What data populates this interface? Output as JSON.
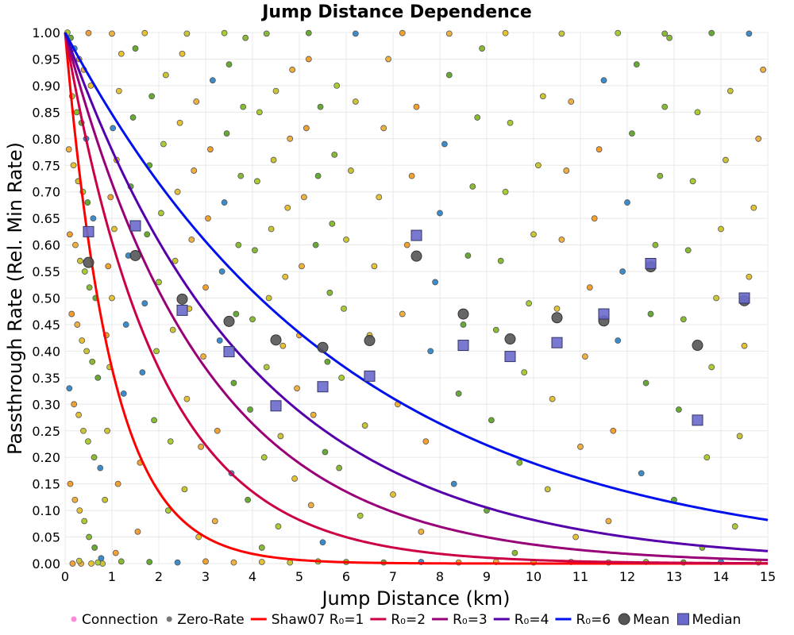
{
  "chart_data": {
    "type": "scatter",
    "title": "Jump Distance Dependence",
    "xlabel": "Jump Distance (km)",
    "ylabel": "Passthrough Rate (Rel. Min Rate)",
    "xlim": [
      0,
      15
    ],
    "ylim": [
      0,
      1
    ],
    "x_ticks": [
      "0",
      "1",
      "2",
      "3",
      "4",
      "5",
      "6",
      "7",
      "8",
      "9",
      "10",
      "11",
      "12",
      "13",
      "14",
      "15"
    ],
    "y_ticks": [
      "0.00",
      "0.05",
      "0.10",
      "0.15",
      "0.20",
      "0.25",
      "0.30",
      "0.35",
      "0.40",
      "0.45",
      "0.50",
      "0.55",
      "0.60",
      "0.65",
      "0.70",
      "0.75",
      "0.80",
      "0.85",
      "0.90",
      "0.95",
      "1.00"
    ],
    "grid": true,
    "legend_position": "bottom",
    "legend": [
      "Connection",
      "Zero-Rate",
      "Shaw07 R₀=1",
      "R₀=2",
      "R₀=3",
      "R₀=4",
      "R₀=6",
      "Mean",
      "Median"
    ],
    "connection_colors": [
      "#66aa33",
      "#88bb33",
      "#aacc33",
      "#ccc533",
      "#e6c233",
      "#f0b040",
      "#f2a030",
      "#3a8ccc"
    ],
    "curves": [
      {
        "name": "Shaw07 R₀=1",
        "r0": 1,
        "color": "#ff0000"
      },
      {
        "name": "R₀=2",
        "r0": 2,
        "color": "#cc0044"
      },
      {
        "name": "R₀=3",
        "r0": 3,
        "color": "#990077"
      },
      {
        "name": "R₀=4",
        "r0": 4,
        "color": "#5500aa"
      },
      {
        "name": "R₀=6",
        "r0": 6,
        "color": "#0011ee"
      }
    ],
    "mean": {
      "color": "#555555",
      "x": [
        0.5,
        1.5,
        2.5,
        3.5,
        4.5,
        5.5,
        6.5,
        7.5,
        8.5,
        9.5,
        10.5,
        11.5,
        12.5,
        13.5,
        14.5
      ],
      "y": [
        0.567,
        0.58,
        0.498,
        0.456,
        0.421,
        0.407,
        0.42,
        0.579,
        0.47,
        0.423,
        0.463,
        0.457,
        0.559,
        0.411,
        0.495
      ]
    },
    "median": {
      "color": "#6a6acc",
      "x": [
        0.5,
        1.5,
        2.5,
        3.5,
        4.5,
        5.5,
        6.5,
        7.5,
        8.5,
        9.5,
        10.5,
        11.5,
        12.5,
        13.5,
        14.5
      ],
      "y": [
        0.625,
        0.636,
        0.477,
        0.399,
        0.297,
        0.333,
        0.353,
        0.618,
        0.411,
        0.39,
        0.416,
        0.47,
        0.565,
        0.27,
        0.5
      ]
    },
    "connections": [
      [
        0.05,
        1.0
      ],
      [
        0.12,
        0.99
      ],
      [
        0.2,
        0.97
      ],
      [
        0.3,
        0.95
      ],
      [
        0.4,
        0.93
      ],
      [
        0.55,
        0.9
      ],
      [
        0.15,
        0.88
      ],
      [
        0.25,
        0.85
      ],
      [
        0.35,
        0.83
      ],
      [
        0.45,
        0.8
      ],
      [
        0.08,
        0.78
      ],
      [
        0.18,
        0.75
      ],
      [
        0.28,
        0.72
      ],
      [
        0.38,
        0.7
      ],
      [
        0.48,
        0.68
      ],
      [
        0.6,
        0.65
      ],
      [
        0.1,
        0.62
      ],
      [
        0.22,
        0.6
      ],
      [
        0.32,
        0.57
      ],
      [
        0.42,
        0.55
      ],
      [
        0.52,
        0.52
      ],
      [
        0.65,
        0.5
      ],
      [
        0.14,
        0.47
      ],
      [
        0.26,
        0.45
      ],
      [
        0.36,
        0.42
      ],
      [
        0.46,
        0.4
      ],
      [
        0.58,
        0.38
      ],
      [
        0.7,
        0.35
      ],
      [
        0.09,
        0.33
      ],
      [
        0.19,
        0.3
      ],
      [
        0.29,
        0.28
      ],
      [
        0.39,
        0.25
      ],
      [
        0.49,
        0.23
      ],
      [
        0.62,
        0.2
      ],
      [
        0.75,
        0.18
      ],
      [
        0.11,
        0.15
      ],
      [
        0.21,
        0.12
      ],
      [
        0.31,
        0.1
      ],
      [
        0.41,
        0.08
      ],
      [
        0.51,
        0.05
      ],
      [
        0.63,
        0.03
      ],
      [
        0.77,
        0.01
      ],
      [
        0.16,
        0.0
      ],
      [
        0.34,
        0.0
      ],
      [
        0.56,
        0.0
      ],
      [
        0.8,
        0.0
      ],
      [
        0.85,
        0.12
      ],
      [
        0.9,
        0.25
      ],
      [
        0.95,
        0.37
      ],
      [
        1.0,
        0.5
      ],
      [
        1.05,
        0.63
      ],
      [
        1.1,
        0.76
      ],
      [
        1.15,
        0.89
      ],
      [
        1.2,
        0.96
      ],
      [
        0.88,
        0.43
      ],
      [
        0.92,
        0.56
      ],
      [
        0.97,
        0.69
      ],
      [
        1.02,
        0.82
      ],
      [
        1.08,
        0.02
      ],
      [
        1.13,
        0.15
      ],
      [
        1.25,
        0.32
      ],
      [
        1.3,
        0.45
      ],
      [
        1.35,
        0.58
      ],
      [
        1.4,
        0.71
      ],
      [
        1.45,
        0.84
      ],
      [
        1.5,
        0.97
      ],
      [
        1.55,
        0.06
      ],
      [
        1.6,
        0.19
      ],
      [
        1.65,
        0.36
      ],
      [
        1.7,
        0.49
      ],
      [
        1.75,
        0.62
      ],
      [
        1.8,
        0.75
      ],
      [
        1.85,
        0.88
      ],
      [
        1.9,
        0.27
      ],
      [
        1.95,
        0.4
      ],
      [
        2.0,
        0.53
      ],
      [
        2.05,
        0.66
      ],
      [
        2.1,
        0.79
      ],
      [
        2.15,
        0.92
      ],
      [
        2.2,
        0.1
      ],
      [
        2.25,
        0.23
      ],
      [
        2.3,
        0.44
      ],
      [
        2.35,
        0.57
      ],
      [
        2.4,
        0.7
      ],
      [
        2.45,
        0.83
      ],
      [
        2.5,
        0.96
      ],
      [
        2.55,
        0.14
      ],
      [
        2.6,
        0.31
      ],
      [
        2.65,
        0.48
      ],
      [
        2.7,
        0.61
      ],
      [
        2.75,
        0.74
      ],
      [
        2.8,
        0.87
      ],
      [
        2.85,
        0.05
      ],
      [
        2.9,
        0.22
      ],
      [
        2.95,
        0.39
      ],
      [
        3.0,
        0.52
      ],
      [
        3.05,
        0.65
      ],
      [
        3.1,
        0.78
      ],
      [
        3.15,
        0.91
      ],
      [
        3.2,
        0.08
      ],
      [
        3.25,
        0.25
      ],
      [
        3.3,
        0.42
      ],
      [
        3.35,
        0.55
      ],
      [
        3.4,
        0.68
      ],
      [
        3.45,
        0.81
      ],
      [
        3.5,
        0.94
      ],
      [
        3.55,
        0.17
      ],
      [
        3.6,
        0.34
      ],
      [
        3.65,
        0.47
      ],
      [
        3.7,
        0.6
      ],
      [
        3.75,
        0.73
      ],
      [
        3.8,
        0.86
      ],
      [
        3.85,
        0.99
      ],
      [
        3.9,
        0.12
      ],
      [
        3.95,
        0.29
      ],
      [
        4.0,
        0.46
      ],
      [
        4.05,
        0.59
      ],
      [
        4.1,
        0.72
      ],
      [
        4.15,
        0.85
      ],
      [
        4.2,
        0.03
      ],
      [
        4.25,
        0.2
      ],
      [
        4.3,
        0.37
      ],
      [
        4.35,
        0.5
      ],
      [
        4.4,
        0.63
      ],
      [
        4.45,
        0.76
      ],
      [
        4.5,
        0.89
      ],
      [
        4.55,
        0.07
      ],
      [
        4.6,
        0.24
      ],
      [
        4.65,
        0.41
      ],
      [
        4.7,
        0.54
      ],
      [
        4.75,
        0.67
      ],
      [
        4.8,
        0.8
      ],
      [
        4.85,
        0.93
      ],
      [
        4.9,
        0.16
      ],
      [
        4.95,
        0.33
      ],
      [
        5.0,
        0.43
      ],
      [
        5.05,
        0.56
      ],
      [
        5.1,
        0.69
      ],
      [
        5.15,
        0.82
      ],
      [
        5.2,
        0.95
      ],
      [
        5.25,
        0.11
      ],
      [
        5.3,
        0.28
      ],
      [
        5.35,
        0.6
      ],
      [
        5.4,
        0.73
      ],
      [
        5.45,
        0.86
      ],
      [
        5.5,
        0.04
      ],
      [
        5.55,
        0.21
      ],
      [
        5.6,
        0.38
      ],
      [
        5.65,
        0.51
      ],
      [
        5.7,
        0.64
      ],
      [
        5.75,
        0.77
      ],
      [
        5.8,
        0.9
      ],
      [
        5.85,
        0.18
      ],
      [
        5.9,
        0.35
      ],
      [
        5.95,
        0.48
      ],
      [
        6.0,
        0.61
      ],
      [
        6.1,
        0.74
      ],
      [
        6.2,
        0.87
      ],
      [
        6.3,
        0.09
      ],
      [
        6.4,
        0.26
      ],
      [
        6.5,
        0.43
      ],
      [
        6.6,
        0.56
      ],
      [
        6.7,
        0.69
      ],
      [
        6.8,
        0.82
      ],
      [
        6.9,
        0.95
      ],
      [
        7.0,
        0.13
      ],
      [
        7.1,
        0.3
      ],
      [
        7.2,
        0.47
      ],
      [
        7.3,
        0.6
      ],
      [
        7.4,
        0.73
      ],
      [
        7.5,
        0.86
      ],
      [
        7.6,
        0.06
      ],
      [
        7.7,
        0.23
      ],
      [
        7.8,
        0.4
      ],
      [
        7.9,
        0.53
      ],
      [
        8.0,
        0.66
      ],
      [
        8.1,
        0.79
      ],
      [
        8.2,
        0.92
      ],
      [
        8.3,
        0.15
      ],
      [
        8.4,
        0.32
      ],
      [
        8.5,
        0.45
      ],
      [
        8.6,
        0.58
      ],
      [
        8.7,
        0.71
      ],
      [
        8.8,
        0.84
      ],
      [
        8.9,
        0.97
      ],
      [
        9.0,
        0.1
      ],
      [
        9.1,
        0.27
      ],
      [
        9.2,
        0.44
      ],
      [
        9.3,
        0.57
      ],
      [
        9.4,
        0.7
      ],
      [
        9.5,
        0.83
      ],
      [
        9.6,
        0.02
      ],
      [
        9.7,
        0.19
      ],
      [
        9.8,
        0.36
      ],
      [
        9.9,
        0.49
      ],
      [
        10.0,
        0.62
      ],
      [
        10.1,
        0.75
      ],
      [
        10.2,
        0.88
      ],
      [
        10.3,
        0.14
      ],
      [
        10.4,
        0.31
      ],
      [
        10.5,
        0.48
      ],
      [
        10.6,
        0.61
      ],
      [
        10.7,
        0.74
      ],
      [
        10.8,
        0.87
      ],
      [
        10.9,
        0.05
      ],
      [
        11.0,
        0.22
      ],
      [
        11.1,
        0.39
      ],
      [
        11.2,
        0.52
      ],
      [
        11.3,
        0.65
      ],
      [
        11.4,
        0.78
      ],
      [
        11.5,
        0.91
      ],
      [
        11.6,
        0.08
      ],
      [
        11.7,
        0.25
      ],
      [
        11.8,
        0.42
      ],
      [
        11.9,
        0.55
      ],
      [
        12.0,
        0.68
      ],
      [
        12.1,
        0.81
      ],
      [
        12.2,
        0.94
      ],
      [
        12.3,
        0.17
      ],
      [
        12.4,
        0.34
      ],
      [
        12.5,
        0.47
      ],
      [
        12.6,
        0.6
      ],
      [
        12.7,
        0.73
      ],
      [
        12.8,
        0.86
      ],
      [
        12.9,
        0.99
      ],
      [
        13.0,
        0.12
      ],
      [
        13.1,
        0.29
      ],
      [
        13.2,
        0.46
      ],
      [
        13.3,
        0.59
      ],
      [
        13.4,
        0.72
      ],
      [
        13.5,
        0.85
      ],
      [
        13.6,
        0.03
      ],
      [
        13.7,
        0.2
      ],
      [
        13.8,
        0.37
      ],
      [
        13.9,
        0.5
      ],
      [
        14.0,
        0.63
      ],
      [
        14.1,
        0.76
      ],
      [
        14.2,
        0.89
      ],
      [
        14.3,
        0.07
      ],
      [
        14.4,
        0.24
      ],
      [
        14.5,
        0.41
      ],
      [
        14.6,
        0.54
      ],
      [
        14.7,
        0.67
      ],
      [
        14.8,
        0.8
      ],
      [
        14.9,
        0.93
      ],
      [
        0.3,
        0.005
      ],
      [
        0.7,
        0.002
      ],
      [
        1.2,
        0.004
      ],
      [
        1.8,
        0.003
      ],
      [
        2.4,
        0.002
      ],
      [
        3.0,
        0.004
      ],
      [
        3.6,
        0.002
      ],
      [
        4.2,
        0.003
      ],
      [
        4.8,
        0.002
      ],
      [
        5.4,
        0.004
      ],
      [
        6.0,
        0.003
      ],
      [
        6.8,
        0.002
      ],
      [
        7.6,
        0.003
      ],
      [
        8.4,
        0.002
      ],
      [
        9.2,
        0.003
      ],
      [
        10.0,
        0.002
      ],
      [
        10.8,
        0.003
      ],
      [
        11.6,
        0.002
      ],
      [
        12.4,
        0.003
      ],
      [
        13.2,
        0.002
      ],
      [
        14.0,
        0.003
      ],
      [
        14.8,
        0.002
      ],
      [
        0.5,
        0.999
      ],
      [
        1.0,
        0.998
      ],
      [
        1.7,
        0.999
      ],
      [
        2.6,
        0.998
      ],
      [
        3.4,
        0.999
      ],
      [
        4.3,
        0.998
      ],
      [
        5.2,
        0.999
      ],
      [
        6.2,
        0.998
      ],
      [
        7.2,
        0.999
      ],
      [
        8.2,
        0.998
      ],
      [
        9.4,
        0.999
      ],
      [
        10.6,
        0.998
      ],
      [
        11.8,
        0.999
      ],
      [
        12.8,
        0.998
      ],
      [
        13.8,
        0.999
      ],
      [
        14.6,
        0.998
      ]
    ]
  }
}
